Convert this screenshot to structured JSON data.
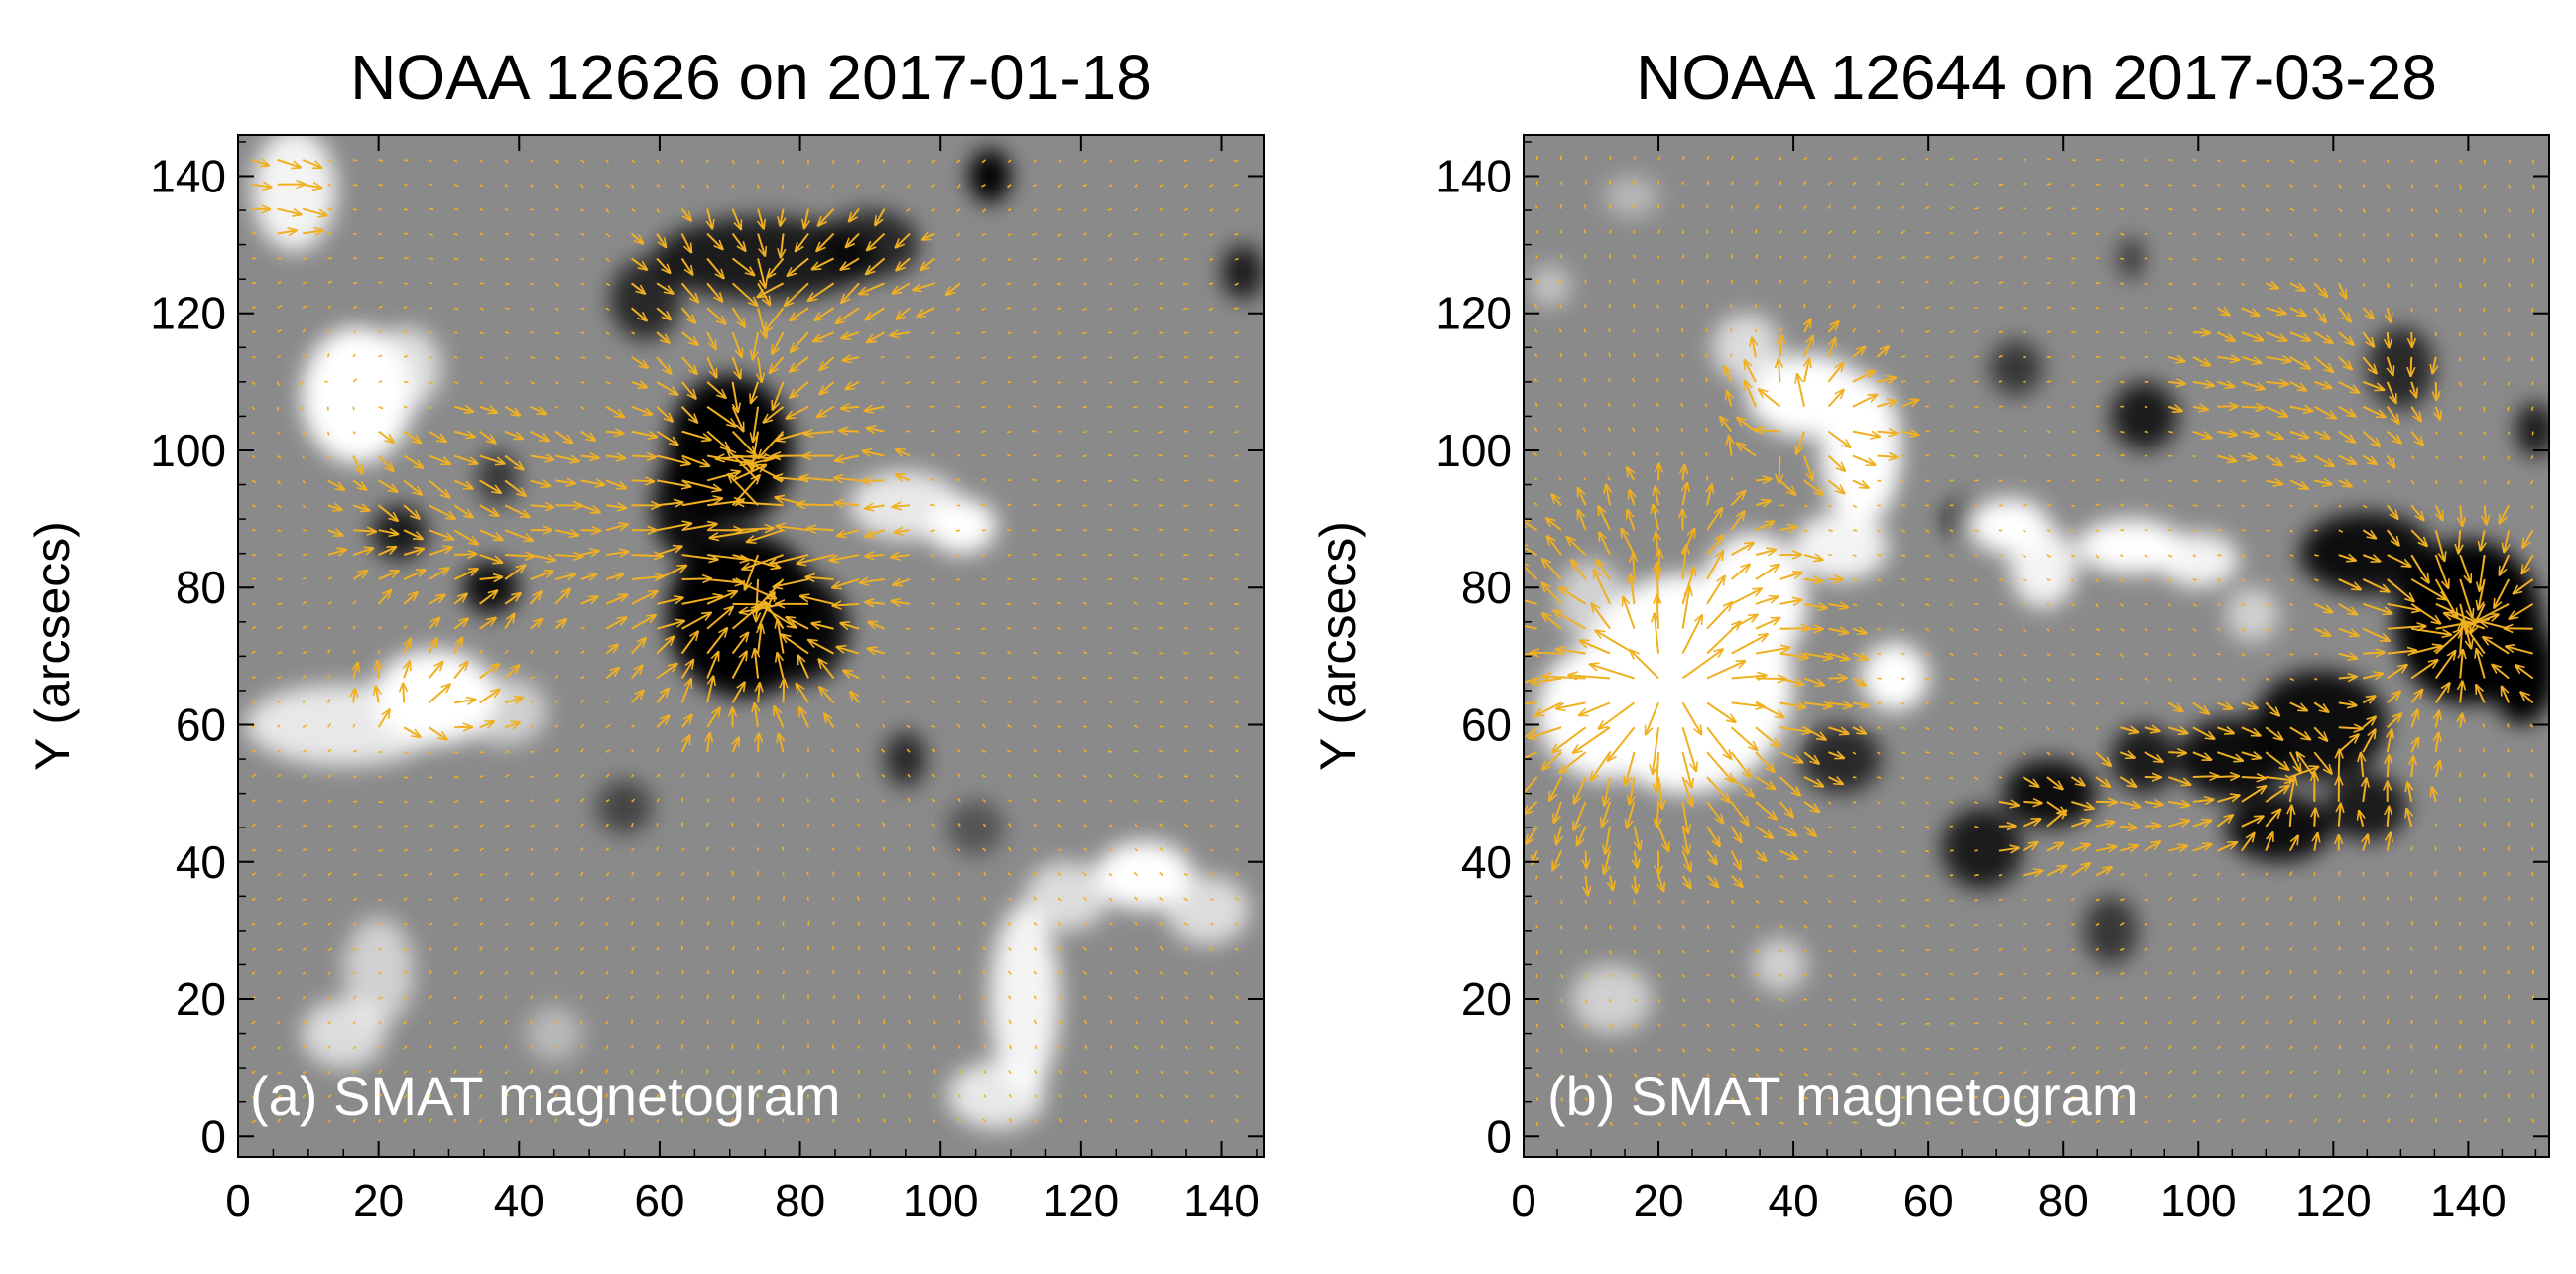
{
  "panels": [
    {
      "id": "a",
      "title": "NOAA 12626 on 2017-01-18",
      "label": "(a) SMAT magnetogram",
      "ylabel": "Y (arcsecs)",
      "x_range": [
        0,
        146
      ],
      "y_range": [
        -3,
        146
      ],
      "x_ticks": [
        "0",
        "20",
        "40",
        "60",
        "80",
        "100",
        "120",
        "140"
      ],
      "y_ticks": [
        "0",
        "20",
        "40",
        "60",
        "80",
        "100",
        "120",
        "140"
      ],
      "background_color": "#8a8a8a",
      "vector_color": "#f0b020",
      "white_patches": [
        {
          "x": 8,
          "y": 138,
          "rx": 6,
          "ry": 9,
          "s": 0.9
        },
        {
          "x": 17,
          "y": 108,
          "rx": 8,
          "ry": 10,
          "s": 1.0
        },
        {
          "x": 24,
          "y": 112,
          "rx": 5,
          "ry": 6,
          "s": 0.7
        },
        {
          "x": 15,
          "y": 60,
          "rx": 14,
          "ry": 6,
          "s": 0.8
        },
        {
          "x": 28,
          "y": 64,
          "rx": 9,
          "ry": 7,
          "s": 1.0
        },
        {
          "x": 38,
          "y": 62,
          "rx": 6,
          "ry": 5,
          "s": 0.6
        },
        {
          "x": 20,
          "y": 24,
          "rx": 5,
          "ry": 8,
          "s": 0.6
        },
        {
          "x": 15,
          "y": 15,
          "rx": 6,
          "ry": 5,
          "s": 0.7
        },
        {
          "x": 45,
          "y": 15,
          "rx": 4,
          "ry": 4,
          "s": 0.4
        },
        {
          "x": 95,
          "y": 92,
          "rx": 8,
          "ry": 5,
          "s": 0.8
        },
        {
          "x": 103,
          "y": 89,
          "rx": 5,
          "ry": 4,
          "s": 1.0
        },
        {
          "x": 112,
          "y": 20,
          "rx": 5,
          "ry": 14,
          "s": 0.9
        },
        {
          "x": 118,
          "y": 35,
          "rx": 6,
          "ry": 5,
          "s": 0.7
        },
        {
          "x": 129,
          "y": 38,
          "rx": 7,
          "ry": 5,
          "s": 1.0
        },
        {
          "x": 138,
          "y": 33,
          "rx": 6,
          "ry": 5,
          "s": 0.7
        },
        {
          "x": 108,
          "y": 6,
          "rx": 7,
          "ry": 5,
          "s": 0.8
        }
      ],
      "black_patches": [
        {
          "x": 107,
          "y": 140,
          "rx": 3,
          "ry": 4,
          "s": 1.0
        },
        {
          "x": 75,
          "y": 128,
          "rx": 16,
          "ry": 6,
          "s": 0.8
        },
        {
          "x": 90,
          "y": 130,
          "rx": 7,
          "ry": 5,
          "s": 0.7
        },
        {
          "x": 58,
          "y": 122,
          "rx": 5,
          "ry": 6,
          "s": 0.7
        },
        {
          "x": 143,
          "y": 126,
          "rx": 3,
          "ry": 4,
          "s": 0.8
        },
        {
          "x": 70,
          "y": 100,
          "rx": 9,
          "ry": 11,
          "s": 1.0
        },
        {
          "x": 64,
          "y": 92,
          "rx": 5,
          "ry": 8,
          "s": 0.9
        },
        {
          "x": 72,
          "y": 76,
          "rx": 11,
          "ry": 12,
          "s": 1.0
        },
        {
          "x": 80,
          "y": 74,
          "rx": 7,
          "ry": 8,
          "s": 0.9
        },
        {
          "x": 23,
          "y": 88,
          "rx": 4,
          "ry": 4,
          "s": 0.8
        },
        {
          "x": 36,
          "y": 80,
          "rx": 4,
          "ry": 4,
          "s": 0.9
        },
        {
          "x": 37,
          "y": 96,
          "rx": 3,
          "ry": 4,
          "s": 0.6
        },
        {
          "x": 95,
          "y": 55,
          "rx": 3,
          "ry": 4,
          "s": 0.7
        },
        {
          "x": 55,
          "y": 48,
          "rx": 4,
          "ry": 4,
          "s": 0.5
        },
        {
          "x": 105,
          "y": 45,
          "rx": 4,
          "ry": 4,
          "s": 0.4
        }
      ],
      "vector_field": {
        "seed": 7,
        "sources": [
          {
            "x": 73,
            "y": 100,
            "w": -1.0
          },
          {
            "x": 75,
            "y": 76,
            "w": -1.2
          },
          {
            "x": 75,
            "y": 128,
            "w": -0.4
          },
          {
            "x": 28,
            "y": 64,
            "w": 0.5
          },
          {
            "x": 18,
            "y": 108,
            "w": 0.5
          },
          {
            "x": 97,
            "y": 91,
            "w": 0.4
          },
          {
            "x": 36,
            "y": 80,
            "w": -0.3
          },
          {
            "x": 23,
            "y": 88,
            "w": -0.3
          }
        ],
        "strong_regions": [
          {
            "x": 72,
            "y": 88,
            "rx": 20,
            "ry": 27,
            "s": 1.0
          },
          {
            "x": 78,
            "y": 125,
            "rx": 24,
            "ry": 13,
            "s": 0.6
          },
          {
            "x": 36,
            "y": 90,
            "rx": 26,
            "ry": 18,
            "s": 0.5
          },
          {
            "x": 6,
            "y": 138,
            "rx": 6,
            "ry": 9,
            "s": 0.5
          },
          {
            "x": 28,
            "y": 64,
            "rx": 15,
            "ry": 8,
            "s": 0.45
          }
        ]
      }
    },
    {
      "id": "b",
      "title": "NOAA 12644 on 2017-03-28",
      "label": "(b) SMAT magnetogram",
      "ylabel": "Y (arcsecs)",
      "x_range": [
        0,
        152
      ],
      "y_range": [
        -3,
        146
      ],
      "x_ticks": [
        "0",
        "20",
        "40",
        "60",
        "80",
        "100",
        "120",
        "140"
      ],
      "y_ticks": [
        "0",
        "20",
        "40",
        "60",
        "80",
        "100",
        "120",
        "140"
      ],
      "background_color": "#8a8a8a",
      "vector_color": "#f0b020",
      "white_patches": [
        {
          "x": 24,
          "y": 66,
          "rx": 16,
          "ry": 16,
          "s": 1.0
        },
        {
          "x": 12,
          "y": 62,
          "rx": 10,
          "ry": 10,
          "s": 1.0
        },
        {
          "x": 34,
          "y": 78,
          "rx": 8,
          "ry": 10,
          "s": 1.0
        },
        {
          "x": 10,
          "y": 78,
          "rx": 5,
          "ry": 6,
          "s": 0.6
        },
        {
          "x": 42,
          "y": 108,
          "rx": 9,
          "ry": 6,
          "s": 1.0
        },
        {
          "x": 50,
          "y": 100,
          "rx": 6,
          "ry": 11,
          "s": 1.0
        },
        {
          "x": 47,
          "y": 86,
          "rx": 7,
          "ry": 5,
          "s": 0.9
        },
        {
          "x": 33,
          "y": 115,
          "rx": 5,
          "ry": 5,
          "s": 0.7
        },
        {
          "x": 55,
          "y": 67,
          "rx": 5,
          "ry": 5,
          "s": 1.0
        },
        {
          "x": 72,
          "y": 89,
          "rx": 6,
          "ry": 4,
          "s": 1.0
        },
        {
          "x": 77,
          "y": 83,
          "rx": 5,
          "ry": 6,
          "s": 0.9
        },
        {
          "x": 90,
          "y": 86,
          "rx": 8,
          "ry": 4,
          "s": 1.0
        },
        {
          "x": 100,
          "y": 84,
          "rx": 6,
          "ry": 4,
          "s": 0.9
        },
        {
          "x": 108,
          "y": 76,
          "rx": 4,
          "ry": 4,
          "s": 0.6
        },
        {
          "x": 13,
          "y": 20,
          "rx": 6,
          "ry": 5,
          "s": 0.6
        },
        {
          "x": 38,
          "y": 25,
          "rx": 4,
          "ry": 4,
          "s": 0.6
        },
        {
          "x": 16,
          "y": 137,
          "rx": 4,
          "ry": 3,
          "s": 0.4
        },
        {
          "x": 4,
          "y": 124,
          "rx": 3,
          "ry": 3,
          "s": 0.5
        }
      ],
      "black_patches": [
        {
          "x": 140,
          "y": 75,
          "rx": 11,
          "ry": 12,
          "s": 1.0
        },
        {
          "x": 148,
          "y": 68,
          "rx": 5,
          "ry": 8,
          "s": 1.0
        },
        {
          "x": 125,
          "y": 85,
          "rx": 10,
          "ry": 6,
          "s": 0.9
        },
        {
          "x": 118,
          "y": 60,
          "rx": 10,
          "ry": 8,
          "s": 0.9
        },
        {
          "x": 105,
          "y": 55,
          "rx": 8,
          "ry": 6,
          "s": 0.9
        },
        {
          "x": 112,
          "y": 45,
          "rx": 8,
          "ry": 5,
          "s": 0.9
        },
        {
          "x": 125,
          "y": 48,
          "rx": 6,
          "ry": 5,
          "s": 0.8
        },
        {
          "x": 78,
          "y": 50,
          "rx": 7,
          "ry": 5,
          "s": 0.9
        },
        {
          "x": 68,
          "y": 42,
          "rx": 6,
          "ry": 6,
          "s": 0.8
        },
        {
          "x": 92,
          "y": 55,
          "rx": 5,
          "ry": 5,
          "s": 0.8
        },
        {
          "x": 87,
          "y": 30,
          "rx": 4,
          "ry": 5,
          "s": 0.6
        },
        {
          "x": 66,
          "y": 90,
          "rx": 4,
          "ry": 3,
          "s": 0.7
        },
        {
          "x": 47,
          "y": 55,
          "rx": 6,
          "ry": 5,
          "s": 0.7
        },
        {
          "x": 92,
          "y": 105,
          "rx": 5,
          "ry": 5,
          "s": 0.8
        },
        {
          "x": 130,
          "y": 112,
          "rx": 5,
          "ry": 6,
          "s": 0.7
        },
        {
          "x": 150,
          "y": 103,
          "rx": 3,
          "ry": 4,
          "s": 0.8
        },
        {
          "x": 73,
          "y": 112,
          "rx": 4,
          "ry": 4,
          "s": 0.6
        },
        {
          "x": 90,
          "y": 128,
          "rx": 2,
          "ry": 3,
          "s": 0.6
        }
      ],
      "vector_field": {
        "seed": 11,
        "sources": [
          {
            "x": 22,
            "y": 65,
            "w": 1.6
          },
          {
            "x": 44,
            "y": 105,
            "w": 0.7
          },
          {
            "x": 90,
            "y": 86,
            "w": 0.4
          },
          {
            "x": 140,
            "y": 75,
            "w": -1.6
          },
          {
            "x": 112,
            "y": 52,
            "w": -0.7
          },
          {
            "x": 75,
            "y": 48,
            "w": -0.5
          },
          {
            "x": 125,
            "y": 112,
            "w": -0.3
          }
        ],
        "strong_regions": [
          {
            "x": 20,
            "y": 66,
            "rx": 24,
            "ry": 24,
            "s": 1.0
          },
          {
            "x": 137,
            "y": 77,
            "rx": 16,
            "ry": 14,
            "s": 1.0
          },
          {
            "x": 42,
            "y": 105,
            "rx": 14,
            "ry": 12,
            "s": 0.6
          },
          {
            "x": 110,
            "y": 52,
            "rx": 30,
            "ry": 14,
            "s": 0.5
          },
          {
            "x": 80,
            "y": 45,
            "rx": 14,
            "ry": 12,
            "s": 0.4
          },
          {
            "x": 115,
            "y": 110,
            "rx": 26,
            "ry": 18,
            "s": 0.4
          }
        ]
      }
    }
  ]
}
